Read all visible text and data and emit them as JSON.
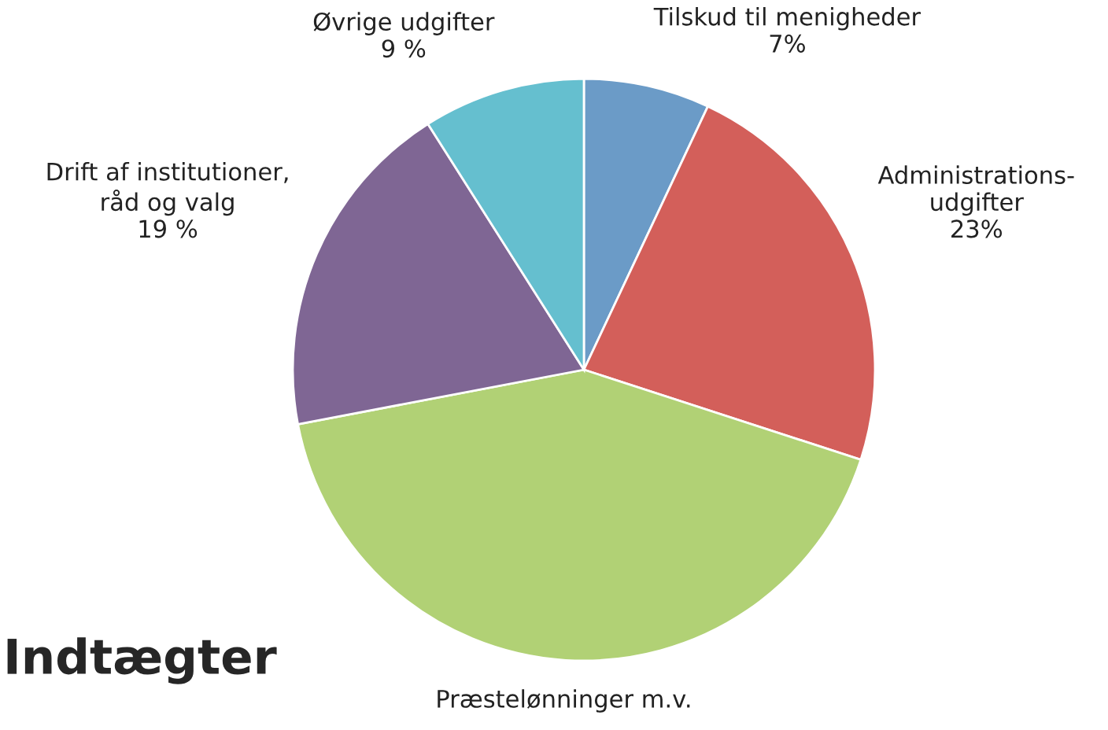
{
  "chart_data": {
    "type": "pie",
    "categories": [
      "Tilskud til menigheder",
      "Administrations-\nudgifter",
      "Præstelønninger m.v.",
      "Drift af institutioner,\nråd og valg",
      "Øvrige udgifter"
    ],
    "values": [
      7,
      23,
      42,
      19,
      9
    ],
    "value_labels": [
      "7%",
      "23%",
      null,
      "19 %",
      "9 %"
    ],
    "colors": [
      "#6b9bc7",
      "#d35f5a",
      "#b1d175",
      "#7f6694",
      "#65bfcf"
    ],
    "annotations": [
      "Indtægter"
    ],
    "legend": false
  }
}
